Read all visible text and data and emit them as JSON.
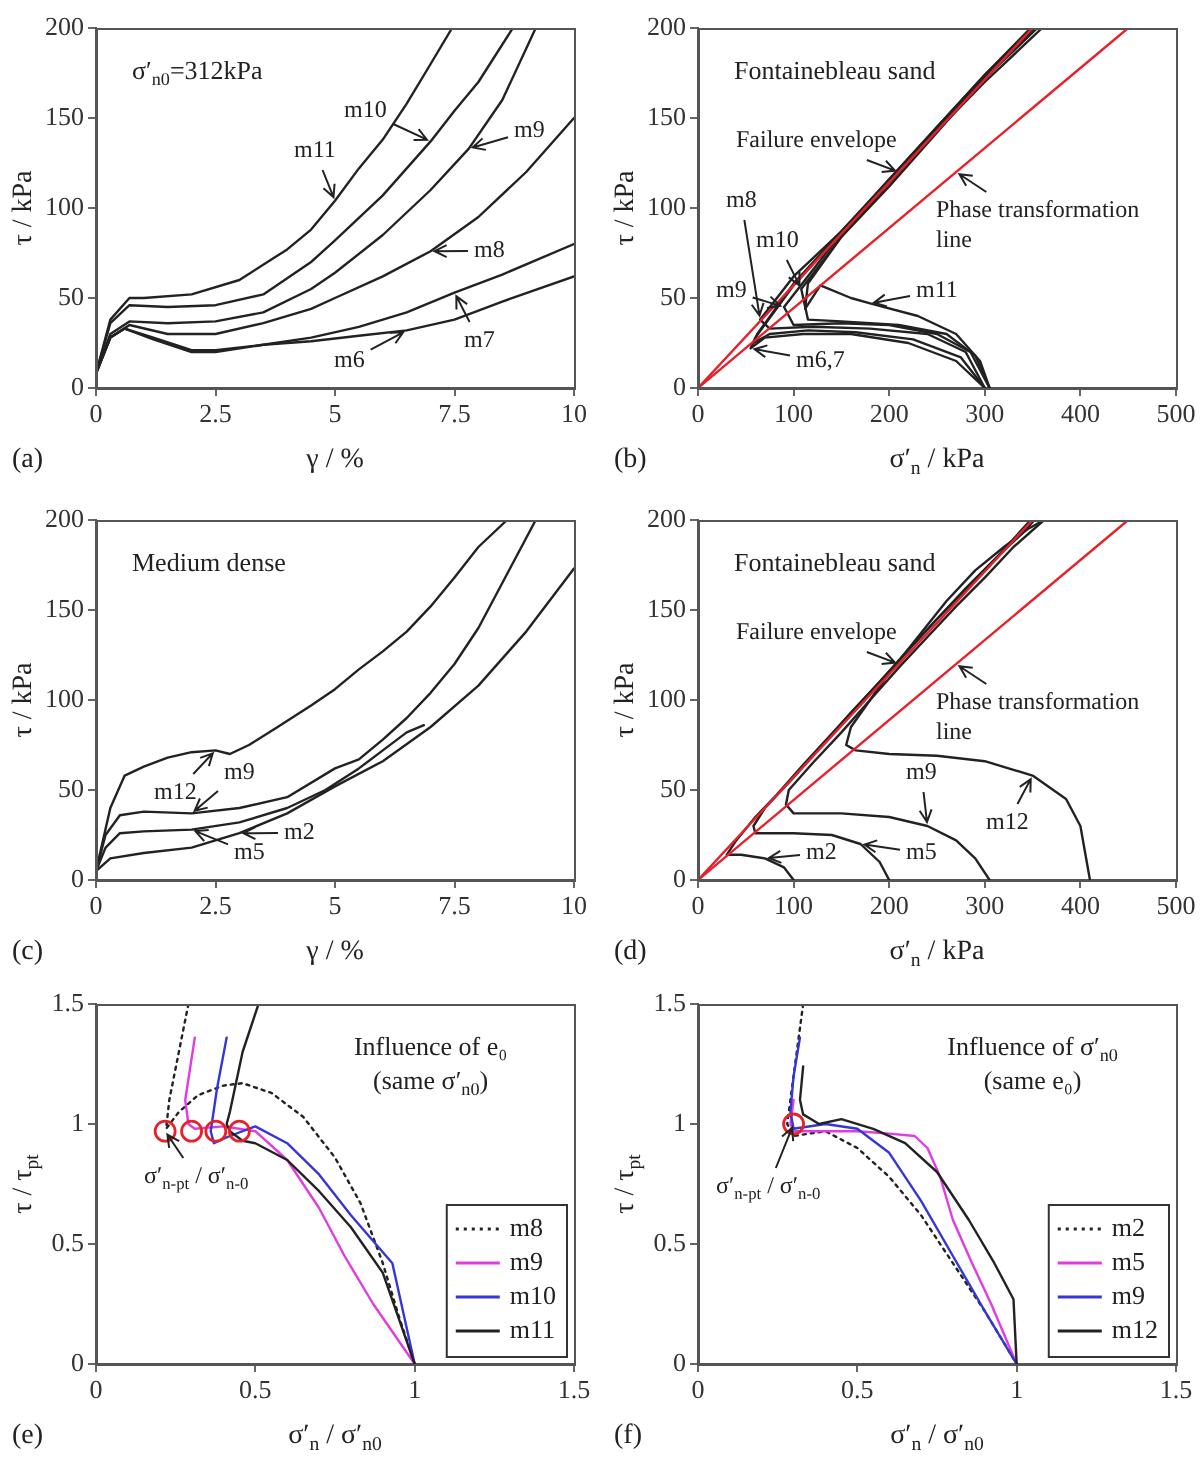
{
  "chart_data": [
    {
      "type": "line",
      "title": "(a)",
      "xlabel": "γ / %",
      "ylabel": "τ / kPa",
      "xlim": [
        0,
        10
      ],
      "ylim": [
        0,
        200
      ],
      "xticks": [
        0,
        2.5,
        5,
        7.5,
        10
      ],
      "yticks": [
        0,
        50,
        100,
        150,
        200
      ],
      "series": [
        {
          "color": "#222222",
          "x": [
            0,
            0.3,
            0.7,
            1,
            2,
            3,
            4,
            4.5,
            5,
            5.5,
            6,
            6.5,
            7,
            7.45
          ],
          "values": [
            8,
            38,
            50,
            50,
            52,
            60,
            77,
            88,
            104,
            122,
            138,
            158,
            180,
            200
          ]
        },
        {
          "color": "#222222",
          "x": [
            0,
            0.3,
            0.7,
            1.5,
            2.5,
            3.5,
            4.5,
            5,
            6,
            7,
            7.5,
            8,
            8.72
          ],
          "values": [
            8,
            36,
            46,
            45,
            46,
            52,
            70,
            82,
            107,
            137,
            154,
            170,
            200
          ]
        },
        {
          "color": "#222222",
          "x": [
            0,
            0.3,
            0.7,
            1.5,
            2.5,
            3.5,
            4.5,
            5,
            6,
            7,
            7.8,
            8.5,
            9.2
          ],
          "values": [
            8,
            30,
            37,
            36,
            37,
            42,
            55,
            64,
            85,
            110,
            133,
            160,
            200
          ]
        },
        {
          "color": "#222222",
          "x": [
            0,
            0.3,
            0.7,
            1.5,
            2.5,
            3.5,
            4.5,
            5,
            6,
            7,
            8,
            9,
            10
          ],
          "values": [
            8,
            28,
            35,
            30,
            30,
            36,
            44,
            50,
            62,
            76,
            95,
            120,
            150
          ]
        },
        {
          "color": "#222222",
          "x": [
            0,
            0.3,
            0.6,
            1.2,
            2,
            2.5,
            3.5,
            4.5,
            5.5,
            6.5,
            7.5,
            8.5,
            10
          ],
          "values": [
            8,
            28,
            33,
            28,
            21,
            21,
            24,
            28,
            34,
            42,
            53,
            63,
            80
          ]
        },
        {
          "color": "#222222",
          "x": [
            0,
            0.3,
            0.6,
            1.2,
            2,
            2.5,
            3.5,
            4.5,
            5.5,
            6.5,
            7.5,
            8.5,
            10
          ],
          "values": [
            8,
            28,
            33,
            27,
            20,
            20,
            24,
            26,
            29,
            32,
            38,
            48,
            62
          ]
        }
      ],
      "annotations": [
        "σ′$_{n0}$=312kPa",
        {
          "text": "m11",
          "x": 5,
          "y": 104
        },
        {
          "text": "m10",
          "x": 7,
          "y": 137
        },
        {
          "text": "m9",
          "x": 7.8,
          "y": 133
        },
        {
          "text": "m8",
          "x": 7,
          "y": 76
        },
        {
          "text": "m7",
          "x": 7.5,
          "y": 53
        },
        {
          "text": "m6",
          "x": 6.5,
          "y": 32
        }
      ]
    },
    {
      "type": "line",
      "title": "(b)",
      "xlabel": "σ′$_{n}$ / kPa",
      "ylabel": "τ / kPa",
      "xlim": [
        0,
        500
      ],
      "ylim": [
        0,
        200
      ],
      "xticks": [
        0,
        100,
        200,
        300,
        400,
        500
      ],
      "yticks": [
        0,
        50,
        100,
        150,
        200
      ],
      "series": [
        {
          "color": "#222222",
          "x": [
            305,
            295,
            270,
            230,
            180,
            160,
            128,
            112,
            115,
            150,
            200,
            250,
            300,
            355
          ],
          "values": [
            0,
            15,
            30,
            40,
            47,
            50,
            57,
            44,
            58,
            84,
            112,
            142,
            172,
            200
          ]
        },
        {
          "color": "#222222",
          "x": [
            305,
            290,
            260,
            210,
            150,
            115,
            108,
            150,
            200,
            250,
            300,
            360
          ],
          "values": [
            0,
            18,
            30,
            35,
            37,
            38,
            55,
            84,
            114,
            143,
            170,
            200
          ]
        },
        {
          "color": "#222222",
          "x": [
            305,
            285,
            250,
            200,
            150,
            100,
            90,
            150,
            200,
            250,
            300,
            352
          ],
          "values": [
            0,
            20,
            30,
            35,
            36,
            35,
            45,
            86,
            115,
            145,
            173,
            200
          ]
        },
        {
          "color": "#222222",
          "x": [
            300,
            280,
            240,
            180,
            120,
            75,
            65,
            100,
            150,
            200,
            250,
            300,
            350
          ],
          "values": [
            0,
            20,
            30,
            33,
            34,
            33,
            38,
            62,
            87,
            115,
            144,
            172,
            200
          ]
        },
        {
          "color": "#222222",
          "x": [
            300,
            275,
            225,
            165,
            115,
            75,
            58,
            62,
            100,
            150,
            200,
            250,
            300,
            350
          ],
          "values": [
            0,
            17,
            27,
            31,
            32,
            30,
            25,
            30,
            58,
            87,
            116,
            145,
            174,
            200
          ]
        },
        {
          "color": "#222222",
          "x": [
            300,
            270,
            220,
            160,
            110,
            70,
            55,
            60,
            100,
            150,
            200,
            250,
            300,
            348
          ],
          "values": [
            0,
            15,
            25,
            30,
            30,
            28,
            22,
            28,
            57,
            86,
            116,
            145,
            174,
            200
          ]
        },
        {
          "color": "#e8202a",
          "x": [
            0,
            350
          ],
          "values": [
            0,
            200
          ]
        },
        {
          "color": "#e8202a",
          "x": [
            0,
            450
          ],
          "values": [
            0,
            200
          ]
        }
      ],
      "annotations": [
        "Fontainebleau sand",
        {
          "text": "Failure envelope",
          "x": 210,
          "y": 120
        },
        {
          "text": "Phase transformation line",
          "x": 270,
          "y": 120
        },
        {
          "text": "m11",
          "x": 180,
          "y": 47
        },
        {
          "text": "m10",
          "x": 108,
          "y": 55
        },
        {
          "text": "m9",
          "x": 90,
          "y": 45
        },
        {
          "text": "m8",
          "x": 65,
          "y": 38
        },
        {
          "text": "m6,7",
          "x": 55,
          "y": 22
        }
      ]
    },
    {
      "type": "line",
      "title": "(c)",
      "xlabel": "γ / %",
      "ylabel": "τ / kPa",
      "xlim": [
        0,
        10
      ],
      "ylim": [
        0,
        200
      ],
      "xticks": [
        0,
        2.5,
        5,
        7.5,
        10
      ],
      "yticks": [
        0,
        50,
        100,
        150,
        200
      ],
      "series": [
        {
          "color": "#222222",
          "x": [
            0,
            0.3,
            0.6,
            1,
            1.5,
            2,
            2.5,
            2.8,
            3.2,
            3.8,
            4.5,
            5,
            5.5,
            6,
            6.5,
            7,
            7.5,
            8,
            8.6
          ],
          "values": [
            5,
            40,
            58,
            63,
            68,
            71,
            72,
            70,
            75,
            85,
            97,
            106,
            117,
            127,
            138,
            152,
            168,
            185,
            200
          ]
        },
        {
          "color": "#222222",
          "x": [
            0,
            0.2,
            0.5,
            1,
            2,
            3,
            4,
            5,
            5.5,
            6,
            6.5,
            7,
            7.5,
            8,
            8.5,
            8.9,
            9.2
          ],
          "values": [
            5,
            25,
            36,
            38,
            37,
            40,
            46,
            62,
            67,
            78,
            90,
            104,
            120,
            140,
            165,
            185,
            200
          ]
        },
        {
          "color": "#222222",
          "x": [
            0,
            0.2,
            0.5,
            1,
            2,
            3,
            4,
            4.8,
            5.5,
            6,
            6.5,
            6.86
          ],
          "values": [
            5,
            18,
            26,
            27,
            28,
            32,
            40,
            50,
            62,
            72,
            82,
            86
          ]
        },
        {
          "color": "#222222",
          "x": [
            0,
            0.3,
            1,
            2,
            3,
            4,
            5,
            6,
            7,
            8,
            9,
            10
          ],
          "values": [
            5,
            12,
            15,
            18,
            26,
            37,
            52,
            66,
            85,
            108,
            138,
            173
          ]
        }
      ],
      "annotations": [
        "Medium dense",
        {
          "text": "m12",
          "x": 2.5,
          "y": 72
        },
        {
          "text": "m9",
          "x": 2,
          "y": 37
        },
        {
          "text": "m5",
          "x": 2,
          "y": 28
        },
        {
          "text": "m2",
          "x": 3,
          "y": 26
        }
      ]
    },
    {
      "type": "line",
      "title": "(d)",
      "xlabel": "σ′$_{n}$ / kPa",
      "ylabel": "τ / kPa",
      "xlim": [
        0,
        500
      ],
      "ylim": [
        0,
        200
      ],
      "xticks": [
        0,
        100,
        200,
        300,
        400,
        500
      ],
      "yticks": [
        0,
        50,
        100,
        150,
        200
      ],
      "series": [
        {
          "color": "#222222",
          "x": [
            410,
            400,
            385,
            350,
            300,
            250,
            200,
            165,
            155,
            160,
            180,
            200,
            230,
            260,
            290,
            320,
            345,
            362
          ],
          "values": [
            0,
            30,
            45,
            58,
            66,
            69,
            70,
            72,
            75,
            85,
            100,
            115,
            135,
            155,
            172,
            185,
            195,
            200
          ]
        },
        {
          "color": "#222222",
          "x": [
            305,
            290,
            270,
            240,
            200,
            150,
            100,
            92,
            95,
            120,
            150,
            180,
            210,
            240,
            270,
            300,
            330,
            362
          ],
          "values": [
            0,
            12,
            22,
            30,
            35,
            37,
            37,
            42,
            50,
            65,
            82,
            100,
            118,
            135,
            152,
            168,
            185,
            200
          ]
        },
        {
          "color": "#222222",
          "x": [
            200,
            190,
            170,
            140,
            100,
            60,
            58,
            70,
            100,
            130,
            160,
            190,
            220,
            250,
            280,
            310,
            340,
            352
          ],
          "values": [
            0,
            10,
            20,
            25,
            26,
            26,
            30,
            40,
            57,
            75,
            93,
            110,
            128,
            145,
            162,
            178,
            193,
            200
          ]
        },
        {
          "color": "#222222",
          "x": [
            100,
            90,
            70,
            45,
            30,
            40,
            60,
            80,
            110,
            150,
            200,
            250,
            300,
            348
          ],
          "values": [
            0,
            7,
            12,
            14,
            14,
            22,
            35,
            46,
            64,
            87,
            116,
            145,
            172,
            200
          ]
        },
        {
          "color": "#e8202a",
          "x": [
            0,
            350
          ],
          "values": [
            0,
            200
          ]
        },
        {
          "color": "#e8202a",
          "x": [
            0,
            450
          ],
          "values": [
            0,
            200
          ]
        }
      ],
      "annotations": [
        "Fontainebleau sand",
        {
          "text": "Failure envelope",
          "x": 210,
          "y": 120
        },
        {
          "text": "Phase transformation line",
          "x": 270,
          "y": 120
        },
        {
          "text": "m12",
          "x": 350,
          "y": 58
        },
        {
          "text": "m9",
          "x": 240,
          "y": 30
        },
        {
          "text": "m5",
          "x": 170,
          "y": 20
        },
        {
          "text": "m2",
          "x": 70,
          "y": 12
        }
      ]
    },
    {
      "type": "line",
      "title": "(e)",
      "xlabel": "σ′$_{n}$ / σ′$_{n0}$",
      "ylabel": "τ / τ$_{pt}$",
      "xlim": [
        0,
        1.5
      ],
      "ylim": [
        0,
        1.5
      ],
      "xticks": [
        0,
        0.5,
        1,
        1.5
      ],
      "yticks": [
        0,
        0.5,
        1,
        1.5
      ],
      "legend": "bottom right",
      "series": [
        {
          "name": "m8",
          "color": "#222222",
          "line_style": "dotted",
          "x": [
            0.29,
            0.26,
            0.23,
            0.22,
            0.26,
            0.32,
            0.4,
            0.46,
            0.55,
            0.65,
            0.75,
            0.83,
            0.9,
            0.95,
            1
          ],
          "values": [
            1.5,
            1.3,
            1.1,
            0.98,
            1.05,
            1.12,
            1.16,
            1.17,
            1.13,
            1.03,
            0.86,
            0.67,
            0.42,
            0.2,
            0
          ]
        },
        {
          "name": "m9",
          "color": "#e33be3",
          "x": [
            0.31,
            0.28,
            0.29,
            0.31,
            0.4,
            0.5,
            0.6,
            0.7,
            0.78,
            0.87,
            1
          ],
          "values": [
            1.36,
            1.1,
            1,
            0.98,
            0.99,
            0.97,
            0.85,
            0.65,
            0.45,
            0.25,
            0
          ]
        },
        {
          "name": "m10",
          "color": "#3535d8",
          "x": [
            0.41,
            0.38,
            0.36,
            0.37,
            0.42,
            0.5,
            0.6,
            0.7,
            0.8,
            0.93,
            1
          ],
          "values": [
            1.36,
            1.15,
            0.97,
            0.92,
            0.95,
            0.99,
            0.92,
            0.79,
            0.62,
            0.42,
            0
          ]
        },
        {
          "name": "m11",
          "color": "#222222",
          "x": [
            0.51,
            0.46,
            0.42,
            0.41,
            0.42,
            0.46,
            0.5,
            0.6,
            0.7,
            0.8,
            0.9,
            1
          ],
          "values": [
            1.5,
            1.3,
            1.05,
            1,
            0.97,
            0.93,
            0.92,
            0.85,
            0.72,
            0.57,
            0.38,
            0
          ]
        },
        {
          "type": "scatter",
          "marker": "circle",
          "color": "#e8202a",
          "x": [
            0.217,
            0.3,
            0.376,
            0.45
          ],
          "values": [
            0.97,
            0.97,
            0.97,
            0.97
          ]
        }
      ],
      "annotations": [
        "Influence of e₀",
        "(same σ′$_{n0}$)",
        {
          "text": "σ′$_{n-pt}$ / σ′$_{n-0}$",
          "x": 0.217,
          "y": 0.97
        }
      ]
    },
    {
      "type": "line",
      "title": "(f)",
      "xlabel": "σ′$_{n}$ / σ′$_{n0}$",
      "ylabel": "τ / τ$_{pt}$",
      "xlim": [
        0,
        1.5
      ],
      "ylim": [
        0,
        1.5
      ],
      "xticks": [
        0,
        0.5,
        1,
        1.5
      ],
      "yticks": [
        0,
        0.5,
        1,
        1.5
      ],
      "legend": "bottom right",
      "series": [
        {
          "name": "m2",
          "color": "#222222",
          "line_style": "dotted",
          "x": [
            0.33,
            0.3,
            0.28,
            0.3,
            0.4,
            0.5,
            0.6,
            0.7,
            0.8,
            0.9,
            1
          ],
          "values": [
            1.5,
            1.2,
            1,
            0.95,
            0.97,
            0.9,
            0.78,
            0.62,
            0.42,
            0.22,
            0
          ]
        },
        {
          "name": "m5",
          "color": "#e33be3",
          "x": [
            0.3,
            0.29,
            0.3,
            0.35,
            0.5,
            0.6,
            0.68,
            0.72,
            0.76,
            0.8,
            0.86,
            0.92,
            1
          ],
          "values": [
            1.1,
            1,
            0.97,
            0.97,
            0.97,
            0.96,
            0.95,
            0.9,
            0.78,
            0.6,
            0.42,
            0.25,
            0
          ]
        },
        {
          "name": "m9",
          "color": "#3535d8",
          "x": [
            0.32,
            0.3,
            0.29,
            0.3,
            0.4,
            0.5,
            0.6,
            0.7,
            0.8,
            0.9,
            1
          ],
          "values": [
            1.36,
            1.2,
            1.05,
            0.98,
            1,
            0.98,
            0.88,
            0.68,
            0.45,
            0.22,
            0
          ]
        },
        {
          "name": "m12",
          "color": "#222222",
          "x": [
            0.33,
            0.32,
            0.33,
            0.38,
            0.45,
            0.55,
            0.65,
            0.75,
            0.85,
            0.93,
            0.99,
            1
          ],
          "values": [
            1.24,
            1.1,
            1.04,
            1,
            1.02,
            0.98,
            0.92,
            0.8,
            0.6,
            0.42,
            0.27,
            0
          ]
        },
        {
          "type": "scatter",
          "marker": "circle",
          "color": "#e8202a",
          "x": [
            0.3
          ],
          "values": [
            1
          ]
        }
      ],
      "annotations": [
        "Influence of σ′$_{n0}$",
        "(same e₀)",
        {
          "text": "σ′$_{n-pt}$ / σ′$_{n-0}$",
          "x": 0.3,
          "y": 1
        }
      ]
    }
  ]
}
